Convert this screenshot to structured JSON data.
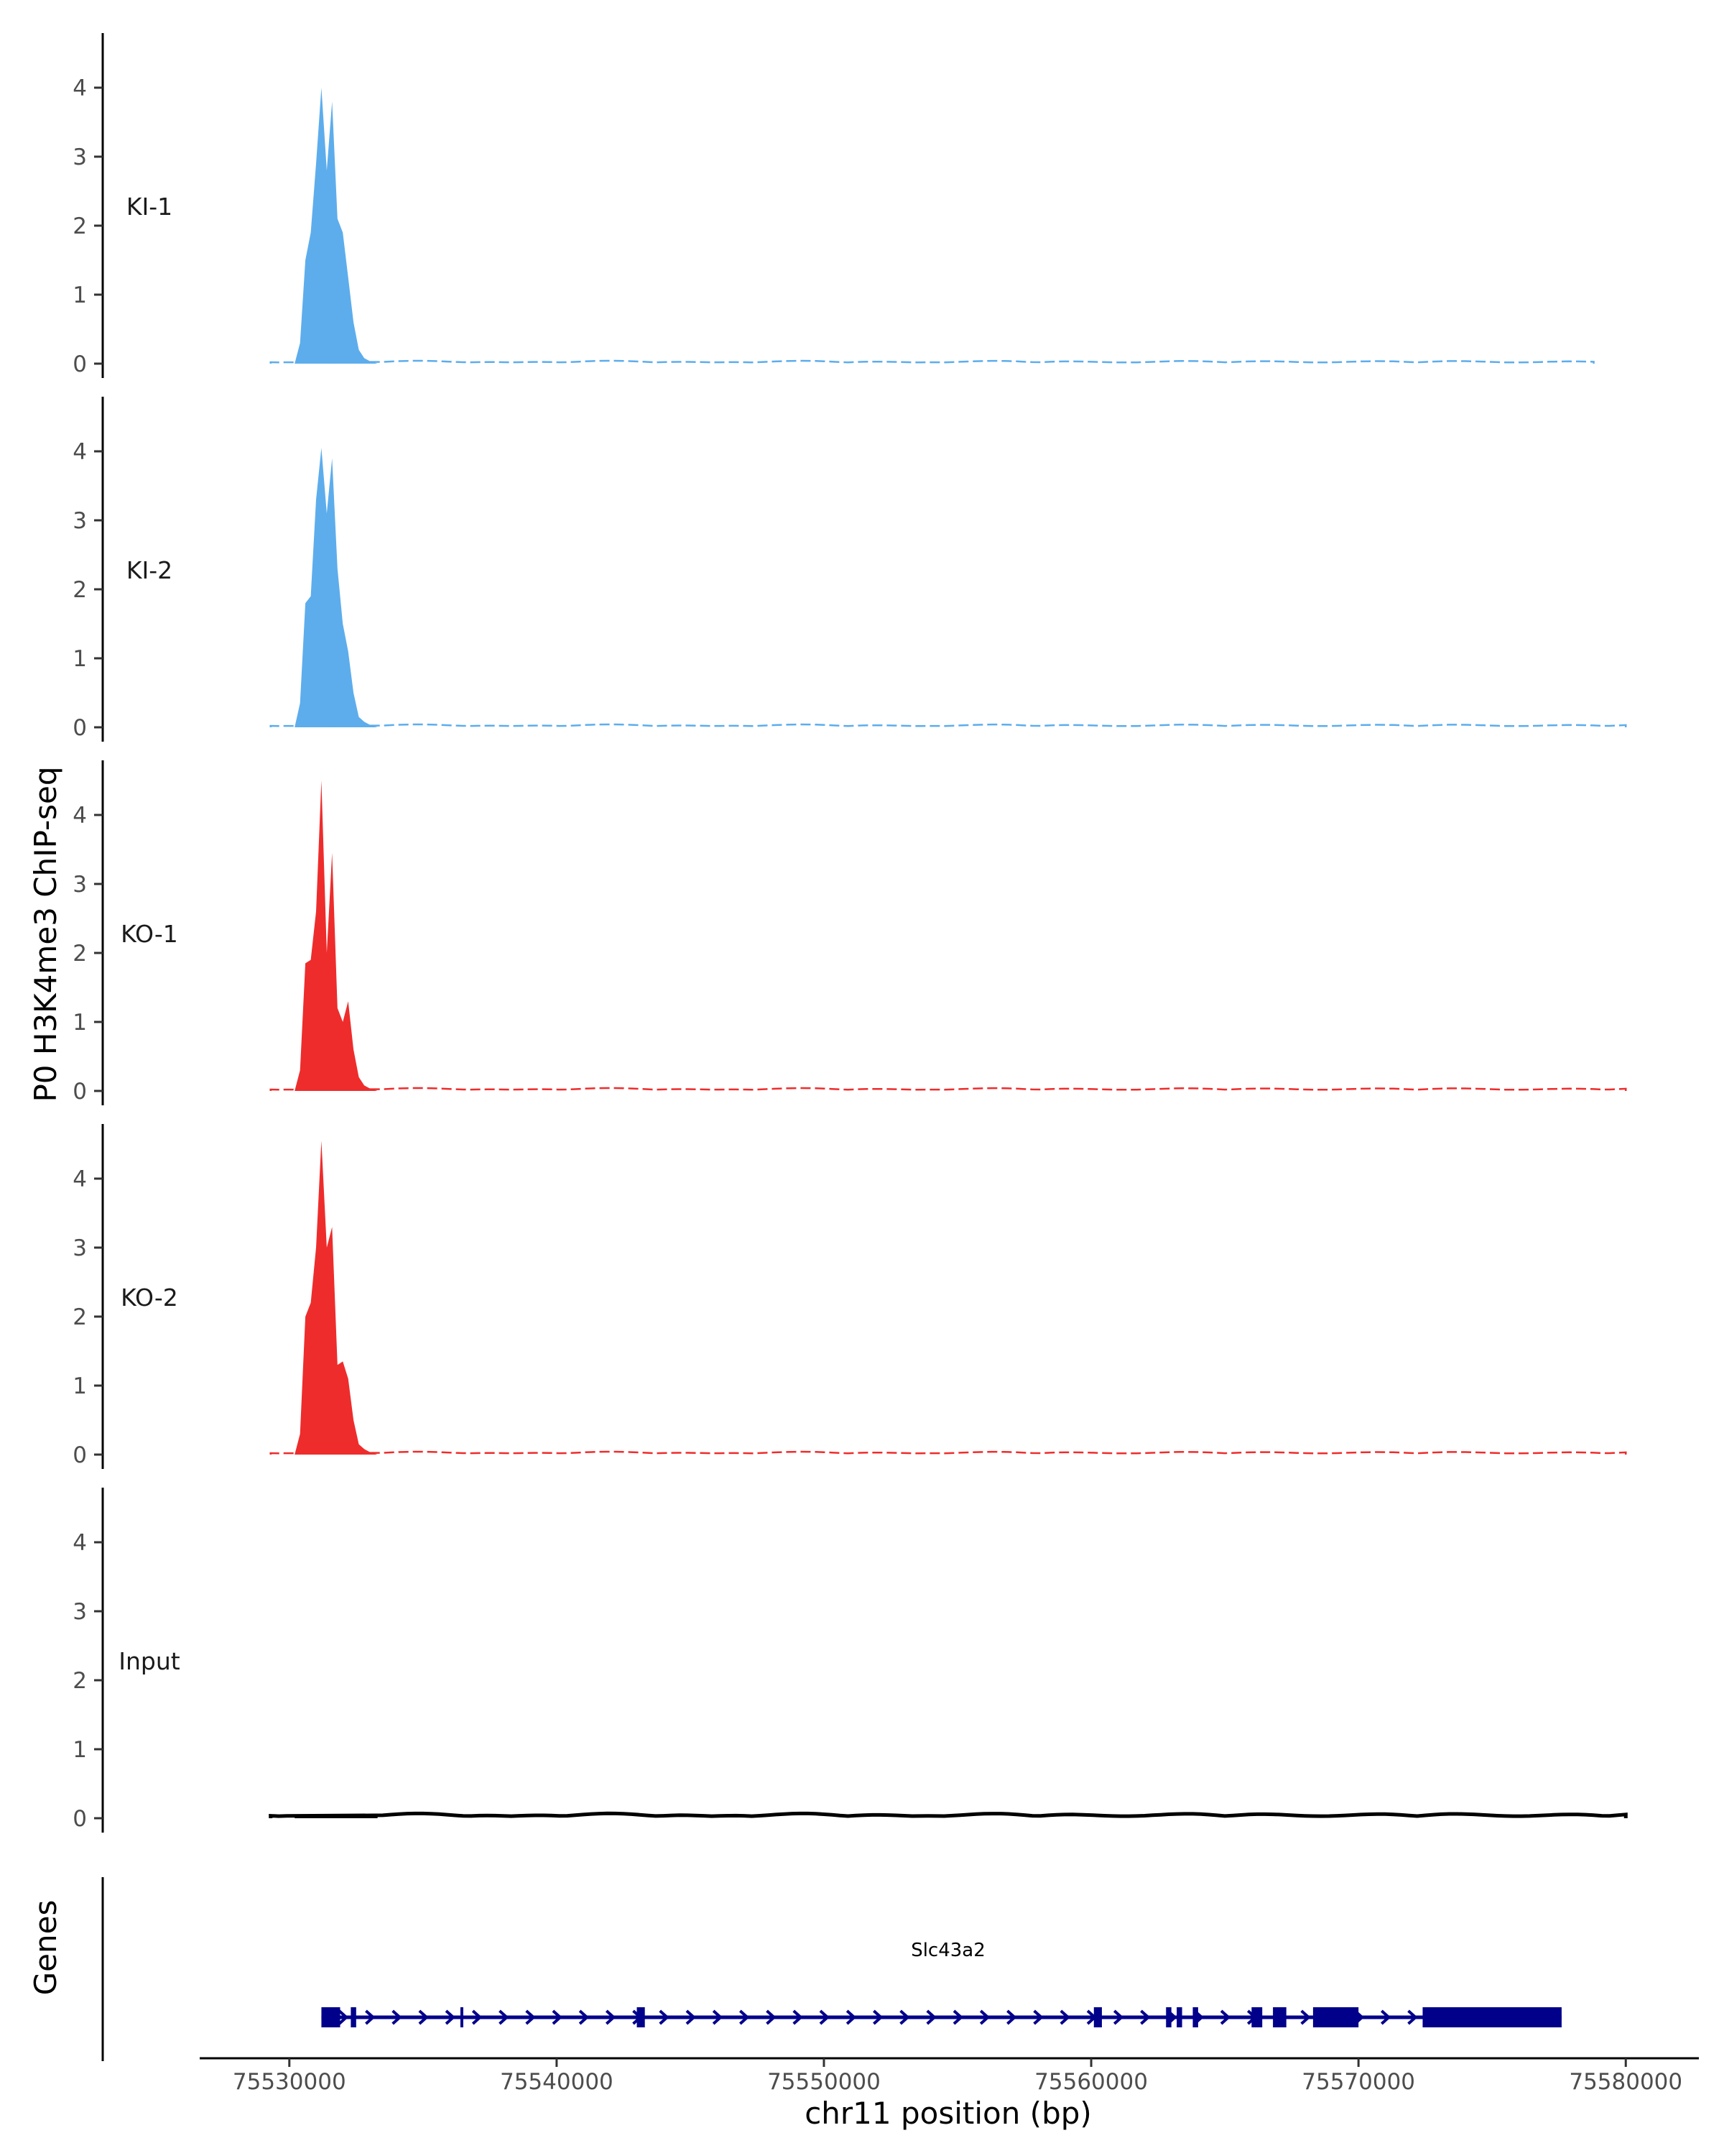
{
  "chart_data": {
    "type": "area",
    "ylabel": "P0 H3K4me3 ChIP-seq",
    "xlabel": "chr11 position (bp)",
    "genes_label": "Genes",
    "xlim": [
      75526700,
      75582600
    ],
    "ylim": [
      0,
      4.75
    ],
    "y_ticks": [
      "0",
      "1",
      "2",
      "3",
      "4"
    ],
    "x_ticks": [
      "75530000",
      "75540000",
      "75550000",
      "75560000",
      "75570000",
      "75580000"
    ],
    "grid": false,
    "peak_profile": {
      "x": [
        75530200,
        75530400,
        75530600,
        75530800,
        75531000,
        75531200,
        75531400,
        75531600,
        75531800,
        75532000,
        75532200,
        75532400,
        75532600,
        75532800,
        75533000,
        75533300
      ],
      "comment_free": true
    },
    "series": [
      {
        "name": "KI-1",
        "color": "#5DADEC",
        "y": [
          0.0,
          0.3,
          1.5,
          1.9,
          2.9,
          4.0,
          2.8,
          3.8,
          2.1,
          1.9,
          1.25,
          0.6,
          0.2,
          0.08,
          0.04,
          0.0
        ],
        "background_level": 0.03,
        "data_end": 75578800
      },
      {
        "name": "KI-2",
        "color": "#5DADEC",
        "y": [
          0.0,
          0.35,
          1.8,
          1.9,
          3.3,
          4.05,
          3.1,
          3.9,
          2.3,
          1.5,
          1.1,
          0.5,
          0.15,
          0.08,
          0.04,
          0.0
        ],
        "background_level": 0.03,
        "data_end": 75580000
      },
      {
        "name": "KO-1",
        "color": "#EE2C2C",
        "y": [
          0.0,
          0.3,
          1.85,
          1.9,
          2.6,
          4.5,
          2.0,
          3.45,
          1.2,
          1.0,
          1.3,
          0.6,
          0.2,
          0.08,
          0.04,
          0.0
        ],
        "background_level": 0.03,
        "data_end": 75580000
      },
      {
        "name": "KO-2",
        "color": "#EE2C2C",
        "y": [
          0.0,
          0.3,
          2.0,
          2.2,
          3.0,
          4.55,
          3.0,
          3.3,
          1.3,
          1.35,
          1.1,
          0.5,
          0.15,
          0.08,
          0.04,
          0.0
        ],
        "background_level": 0.03,
        "data_end": 75580000
      },
      {
        "name": "Input",
        "color": "#000000",
        "y": [
          0.03,
          0.05,
          0.04,
          0.06,
          0.04,
          0.05,
          0.03,
          0.05,
          0.04,
          0.05,
          0.03,
          0.04,
          0.05,
          0.03,
          0.04,
          0.03
        ],
        "background_level": 0.05,
        "data_end": 75580000
      }
    ],
    "gene": {
      "name": "Slc43a2",
      "color": "#00008B",
      "start": 75531200,
      "end": 75577600,
      "strand": "+",
      "exons": [
        [
          75531200,
          75531900
        ],
        [
          75532300,
          75532500
        ],
        [
          75536400,
          75536500
        ],
        [
          75543000,
          75543300
        ],
        [
          75560100,
          75560400
        ],
        [
          75562800,
          75563000
        ],
        [
          75563200,
          75563400
        ],
        [
          75563800,
          75564000
        ],
        [
          75566000,
          75566400
        ],
        [
          75566800,
          75567300
        ],
        [
          75568300,
          75570000
        ],
        [
          75572400,
          75577600
        ]
      ]
    }
  }
}
